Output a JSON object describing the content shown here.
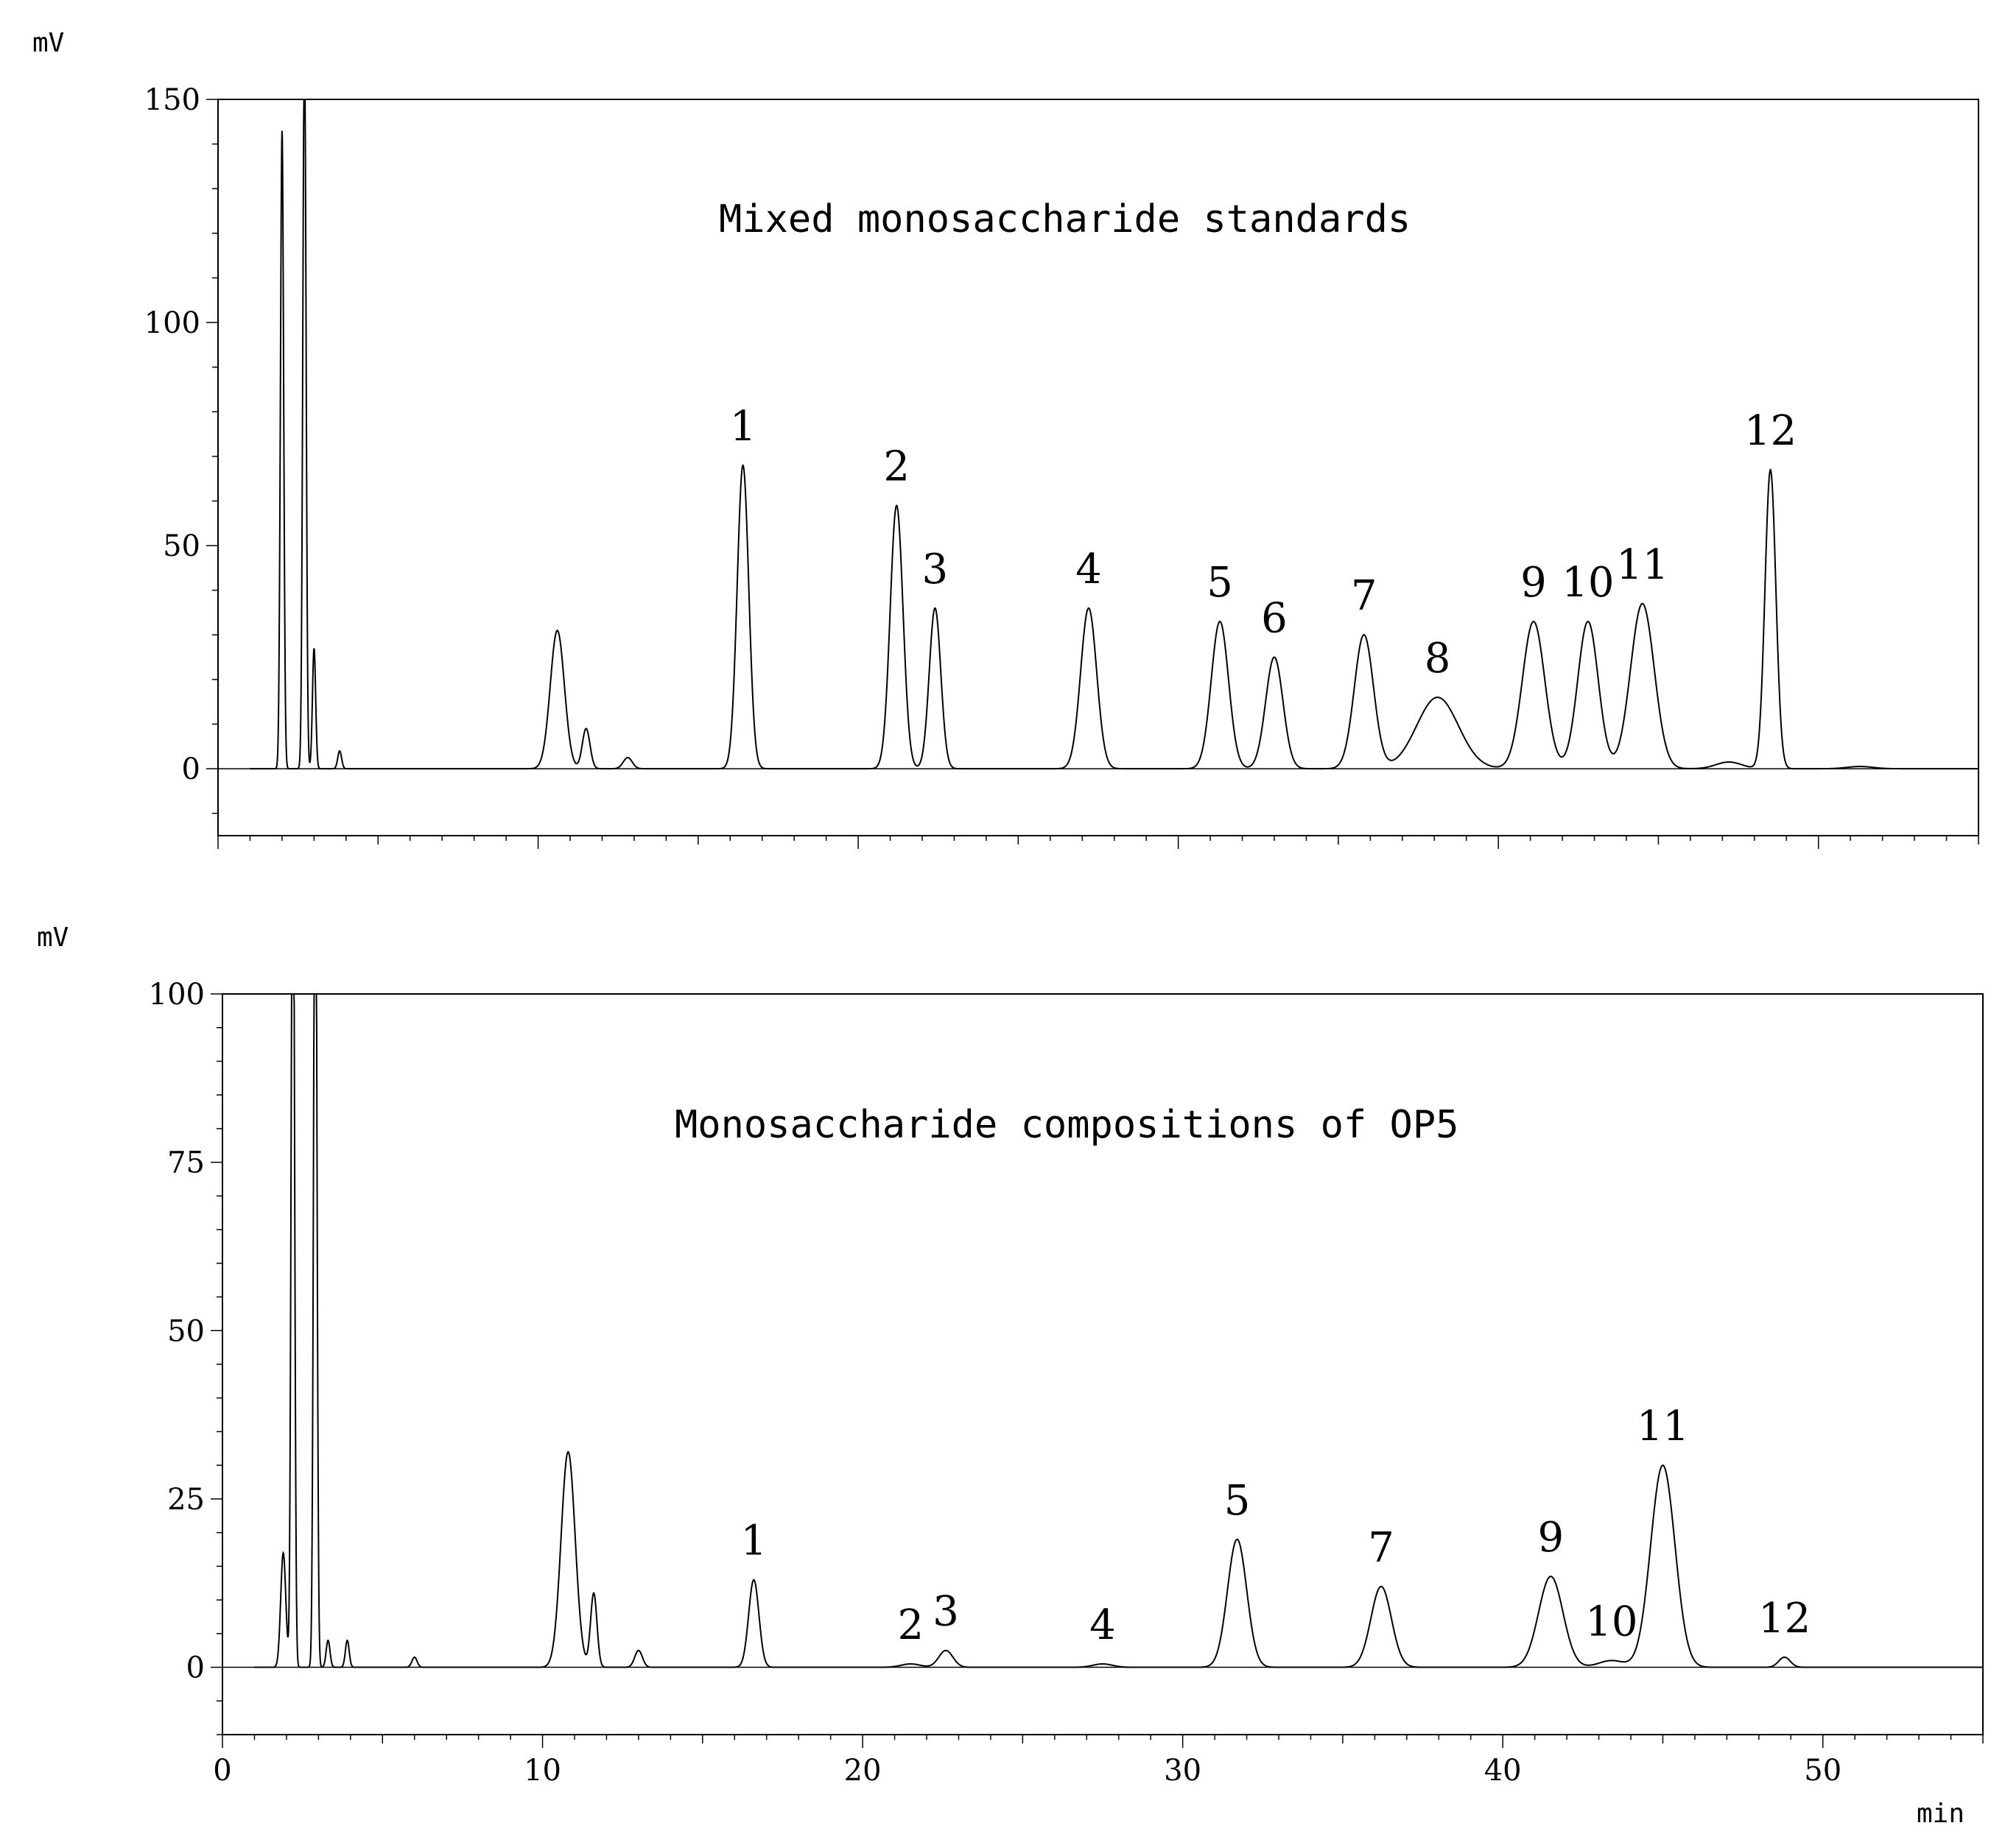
{
  "chart_data": [
    {
      "type": "line",
      "title": "Mixed monosaccharide standards",
      "ylabel": "mV",
      "xlabel": "",
      "xlim": [
        0,
        55
      ],
      "ylim": [
        -15,
        150
      ],
      "yticks": [
        0,
        50,
        100,
        150
      ],
      "xticks": [],
      "baseline_noise": [
        {
          "rt": 2.0,
          "height": 143,
          "width": 0.05
        },
        {
          "rt": 2.7,
          "height": 165,
          "width": 0.05
        },
        {
          "rt": 3.0,
          "height": 27,
          "width": 0.05
        },
        {
          "rt": 3.8,
          "height": 4,
          "width": 0.06
        },
        {
          "rt": 10.6,
          "height": 31,
          "width": 0.22
        },
        {
          "rt": 11.5,
          "height": 9,
          "width": 0.12
        },
        {
          "rt": 12.8,
          "height": 2.5,
          "width": 0.14
        },
        {
          "rt": 47.2,
          "height": 1.5,
          "width": 0.4
        },
        {
          "rt": 51.3,
          "height": 0.5,
          "width": 0.4
        }
      ],
      "peaks": [
        {
          "label": "1",
          "rt": 16.4,
          "height": 68,
          "width": 0.18
        },
        {
          "label": "2",
          "rt": 21.2,
          "height": 59,
          "width": 0.2
        },
        {
          "label": "3",
          "rt": 22.4,
          "height": 36,
          "width": 0.18
        },
        {
          "label": "4",
          "rt": 27.2,
          "height": 36,
          "width": 0.25
        },
        {
          "label": "5",
          "rt": 31.3,
          "height": 33,
          "width": 0.27
        },
        {
          "label": "6",
          "rt": 33.0,
          "height": 25,
          "width": 0.27
        },
        {
          "label": "7",
          "rt": 35.8,
          "height": 30,
          "width": 0.3
        },
        {
          "label": "8",
          "rt": 38.1,
          "height": 16,
          "width": 0.65
        },
        {
          "label": "9",
          "rt": 41.1,
          "height": 33,
          "width": 0.35
        },
        {
          "label": "10",
          "rt": 42.8,
          "height": 33,
          "width": 0.32
        },
        {
          "label": "11",
          "rt": 44.5,
          "height": 37,
          "width": 0.37
        },
        {
          "label": "12",
          "rt": 48.5,
          "height": 67,
          "width": 0.17
        }
      ]
    },
    {
      "type": "line",
      "title": "Monosaccharide compositions of OP5",
      "ylabel": "mV",
      "xlabel": "min",
      "xlim": [
        0,
        55
      ],
      "ylim": [
        -10,
        100
      ],
      "yticks": [
        0,
        25,
        50,
        75,
        100
      ],
      "xticks": [
        0,
        10,
        20,
        30,
        40,
        50
      ],
      "baseline_noise": [
        {
          "rt": 1.9,
          "height": 17,
          "width": 0.08
        },
        {
          "rt": 2.2,
          "height": 140,
          "width": 0.05
        },
        {
          "rt": 2.9,
          "height": 140,
          "width": 0.05
        },
        {
          "rt": 3.3,
          "height": 4,
          "width": 0.06
        },
        {
          "rt": 3.9,
          "height": 4,
          "width": 0.06
        },
        {
          "rt": 6.0,
          "height": 1.5,
          "width": 0.08
        },
        {
          "rt": 10.8,
          "height": 32,
          "width": 0.22
        },
        {
          "rt": 11.6,
          "height": 11,
          "width": 0.1
        },
        {
          "rt": 13.0,
          "height": 2.5,
          "width": 0.12
        }
      ],
      "peaks": [
        {
          "label": "1",
          "rt": 16.6,
          "height": 13,
          "width": 0.16
        },
        {
          "label": "2",
          "rt": 21.5,
          "height": 0.5,
          "width": 0.3
        },
        {
          "label": "3",
          "rt": 22.6,
          "height": 2.5,
          "width": 0.22
        },
        {
          "label": "4",
          "rt": 27.5,
          "height": 0.5,
          "width": 0.3
        },
        {
          "label": "5",
          "rt": 31.7,
          "height": 19,
          "width": 0.3
        },
        {
          "label": "7",
          "rt": 36.2,
          "height": 12,
          "width": 0.32
        },
        {
          "label": "9",
          "rt": 41.5,
          "height": 13.5,
          "width": 0.38
        },
        {
          "label": "10",
          "rt": 43.4,
          "height": 1,
          "width": 0.4
        },
        {
          "label": "11",
          "rt": 45.0,
          "height": 30,
          "width": 0.38
        },
        {
          "label": "12",
          "rt": 48.8,
          "height": 1.5,
          "width": 0.18
        }
      ]
    }
  ]
}
